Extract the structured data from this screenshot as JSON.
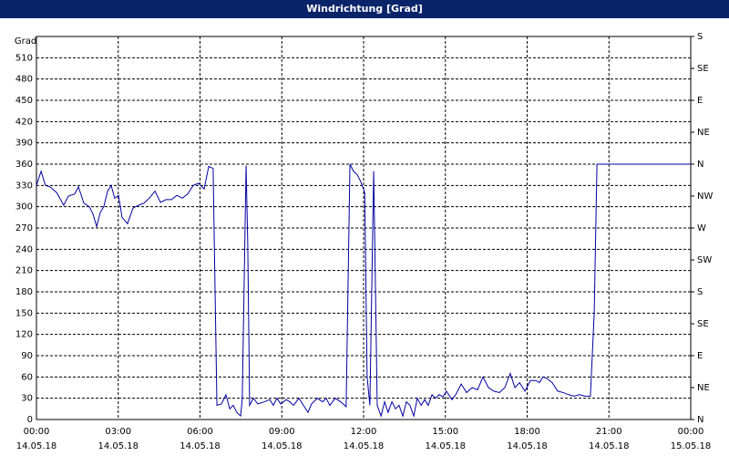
{
  "chart_data": {
    "type": "line",
    "title": "Windrichtung [Grad]",
    "y_label": "Grad",
    "xlim": [
      0,
      24
    ],
    "xticks": [
      {
        "value": 0,
        "label": "00:00",
        "date": "14.05.18"
      },
      {
        "value": 3,
        "label": "03:00",
        "date": "14.05.18"
      },
      {
        "value": 6,
        "label": "06:00",
        "date": "14.05.18"
      },
      {
        "value": 9,
        "label": "09:00",
        "date": "14.05.18"
      },
      {
        "value": 12,
        "label": "12:00",
        "date": "14.05.18"
      },
      {
        "value": 15,
        "label": "15:00",
        "date": "14.05.18"
      },
      {
        "value": 18,
        "label": "18:00",
        "date": "14.05.18"
      },
      {
        "value": 21,
        "label": "21:00",
        "date": "14.05.18"
      },
      {
        "value": 24,
        "label": "00:00",
        "date": "15.05.18"
      }
    ],
    "ylim": [
      0,
      540
    ],
    "yticks": [
      0,
      30,
      60,
      90,
      120,
      150,
      180,
      210,
      240,
      270,
      300,
      330,
      360,
      390,
      420,
      450,
      480,
      510
    ],
    "y2lim": [
      0,
      540
    ],
    "y2ticks": [
      {
        "value": 0,
        "label": "N"
      },
      {
        "value": 45,
        "label": "NE"
      },
      {
        "value": 90,
        "label": "E"
      },
      {
        "value": 135,
        "label": "SE"
      },
      {
        "value": 180,
        "label": "S"
      },
      {
        "value": 225,
        "label": "SW"
      },
      {
        "value": 270,
        "label": "W"
      },
      {
        "value": 315,
        "label": "NW"
      },
      {
        "value": 360,
        "label": "N"
      },
      {
        "value": 405,
        "label": "NE"
      },
      {
        "value": 450,
        "label": "E"
      },
      {
        "value": 495,
        "label": "SE"
      },
      {
        "value": 540,
        "label": "S"
      }
    ],
    "grid": true,
    "series": [
      {
        "color": "#0000a0",
        "x": [
          0,
          0.17,
          0.33,
          0.5,
          0.74,
          1,
          1.17,
          1.4,
          1.54,
          1.74,
          1.94,
          2.07,
          2.21,
          2.34,
          2.47,
          2.61,
          2.74,
          2.87,
          3.01,
          3.14,
          3.34,
          3.54,
          3.74,
          3.94,
          4.14,
          4.35,
          4.55,
          4.75,
          4.95,
          5.15,
          5.35,
          5.55,
          5.75,
          5.95,
          6.15,
          6.32,
          6.48,
          6.62,
          6.79,
          6.95,
          7.09,
          7.22,
          7.35,
          7.49,
          7.55,
          7.69,
          7.75,
          7.82,
          7.96,
          8.12,
          8.36,
          8.56,
          8.69,
          8.82,
          8.96,
          9.16,
          9.29,
          9.43,
          9.63,
          9.76,
          9.96,
          10.09,
          10.3,
          10.5,
          10.63,
          10.76,
          10.96,
          11.16,
          11.36,
          11.5,
          11.63,
          11.77,
          11.9,
          12.04,
          12.13,
          12.23,
          12.37,
          12.43,
          12.5,
          12.64,
          12.77,
          12.9,
          13.04,
          13.17,
          13.3,
          13.44,
          13.57,
          13.7,
          13.84,
          13.97,
          14.11,
          14.24,
          14.37,
          14.51,
          14.64,
          14.77,
          14.91,
          15.04,
          15.24,
          15.38,
          15.58,
          15.78,
          15.98,
          16.18,
          16.38,
          16.58,
          16.78,
          16.98,
          17.18,
          17.38,
          17.55,
          17.72,
          17.92,
          18.12,
          18.32,
          18.45,
          18.58,
          18.72,
          18.92,
          19.12,
          19.32,
          19.52,
          19.72,
          19.92,
          20.12,
          20.32,
          20.46,
          20.56,
          24
        ],
        "values": [
          330,
          350,
          330,
          328,
          320,
          302,
          315,
          318,
          328,
          305,
          300,
          290,
          272,
          292,
          300,
          322,
          330,
          312,
          316,
          285,
          276,
          298,
          302,
          305,
          312,
          322,
          306,
          310,
          310,
          316,
          312,
          318,
          330,
          333,
          325,
          357,
          354,
          20,
          22,
          35,
          15,
          20,
          10,
          5,
          30,
          358,
          250,
          20,
          30,
          22,
          25,
          28,
          20,
          30,
          22,
          28,
          25,
          20,
          30,
          22,
          10,
          22,
          30,
          25,
          30,
          20,
          30,
          25,
          18,
          360,
          350,
          345,
          335,
          320,
          60,
          20,
          350,
          200,
          20,
          5,
          25,
          10,
          25,
          15,
          20,
          5,
          25,
          20,
          5,
          30,
          20,
          28,
          20,
          35,
          30,
          35,
          32,
          40,
          28,
          35,
          50,
          38,
          45,
          42,
          60,
          45,
          40,
          38,
          45,
          65,
          45,
          52,
          40,
          55,
          55,
          52,
          60,
          58,
          52,
          40,
          38,
          35,
          33,
          35,
          33,
          33,
          150,
          360,
          360
        ]
      }
    ]
  }
}
